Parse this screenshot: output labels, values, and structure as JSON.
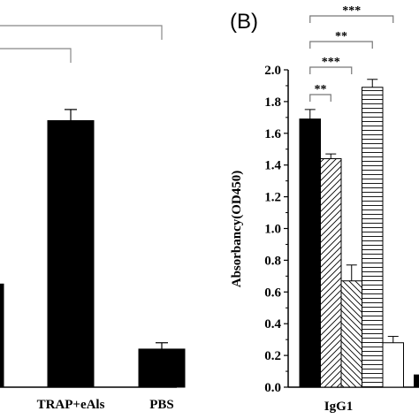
{
  "colors": {
    "ink": "#000000",
    "paper": "#ffffff"
  },
  "chart_data": [
    {
      "panel": "left-partial",
      "type": "bar",
      "categories": [
        "",
        "TRAP+eAls",
        "PBS"
      ],
      "values": [
        0.65,
        1.68,
        0.24
      ],
      "errors": [
        0,
        0.07,
        0.04
      ],
      "fills": [
        "solid",
        "solid",
        "solid"
      ],
      "ylim": [
        0,
        2.0
      ],
      "significance": [
        {
          "from": 0,
          "to": 1,
          "label": ""
        },
        {
          "from": 0,
          "to": 2,
          "label": ""
        }
      ]
    },
    {
      "panel_label": "(B)",
      "type": "bar",
      "ylabel": "Absorbancy(OD450)",
      "ylim": [
        0,
        2.0
      ],
      "yticks": [
        "0.0",
        "0.2",
        "0.4",
        "0.6",
        "0.8",
        "1.0",
        "1.2",
        "1.4",
        "1.6",
        "1.8",
        "2.0"
      ],
      "group": "IgG1",
      "values": [
        1.69,
        1.44,
        0.67,
        1.89,
        0.28
      ],
      "errors": [
        0.06,
        0.03,
        0.1,
        0.05,
        0.04
      ],
      "fills": [
        "solid",
        "diagonal",
        "back-diagonal",
        "horizontal",
        "white"
      ],
      "significance": [
        {
          "from": 0,
          "to": 1,
          "label": "**"
        },
        {
          "from": 0,
          "to": 2,
          "label": "***"
        },
        {
          "from": 0,
          "to": 3,
          "label": "**"
        },
        {
          "from": 0,
          "to": 4,
          "label": "***"
        }
      ],
      "partial_next_bar": 0.08
    }
  ]
}
